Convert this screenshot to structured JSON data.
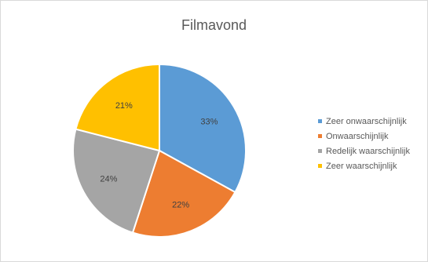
{
  "chart_data": {
    "type": "pie",
    "title": "Filmavond",
    "categories": [
      "Zeer onwaarschijnlijk",
      "Onwaarschijnlijk",
      "Redelijk waarschijnlijk",
      "Zeer waarschijnlijk"
    ],
    "values": [
      33,
      22,
      24,
      21
    ],
    "labels": [
      "33%",
      "22%",
      "24%",
      "21%"
    ],
    "colors": [
      "#5b9bd5",
      "#ed7d31",
      "#a5a5a5",
      "#ffc000"
    ],
    "legend_position": "right"
  }
}
